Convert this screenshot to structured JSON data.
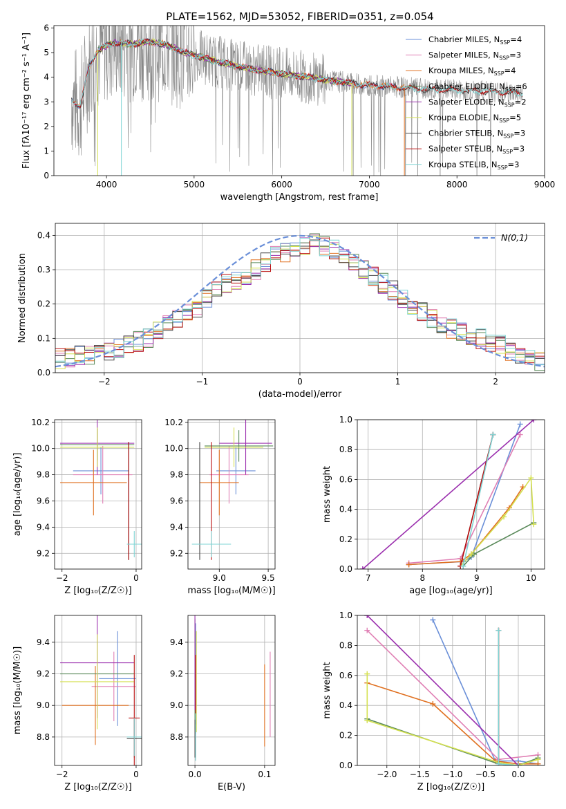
{
  "figure": {
    "title": "PLATE=1562, MJD=53052, FIBERID=0351, z=0.054"
  },
  "colors": {
    "Chabrier MILES": "#6a8fd8",
    "Salpeter MILES": "#e07fb4",
    "Kroupa MILES": "#e07020",
    "Chabrier ELODIE": "#5a8a5a",
    "Salpeter ELODIE": "#9b2fae",
    "Kroupa ELODIE": "#d4e050",
    "Chabrier STELIB": "#444444",
    "Salpeter STELIB": "#bb1111",
    "Kroupa STELIB": "#7fd4d4",
    "observed": "#888888",
    "normal": "#6a8fd8"
  },
  "chart_data": [
    {
      "type": "line",
      "id": "spectrum",
      "xlabel": "wavelength [Angstrom, rest frame]",
      "ylabel": "Flux [fλ10⁻¹⁷ erg cm⁻² s⁻¹ A⁻¹]",
      "xlim": [
        3400,
        9000
      ],
      "ylim": [
        0,
        6.1
      ],
      "xticks": [
        4000,
        5000,
        6000,
        7000,
        8000,
        9000
      ],
      "yticks": [
        0,
        1,
        2,
        3,
        4,
        5,
        6
      ],
      "legend_position": "right",
      "observed_range": [
        3600,
        8750
      ],
      "series": [
        {
          "name": "Chabrier MILES, N_SSP=4",
          "label": "Chabrier MILES, N",
          "sub": "SSP",
          "suffix": "=4",
          "x_range": [
            3600,
            7400
          ]
        },
        {
          "name": "Salpeter MILES, N_SSP=3",
          "label": "Salpeter MILES, N",
          "sub": "SSP",
          "suffix": "=3",
          "x_range": [
            3600,
            7400
          ]
        },
        {
          "name": "Kroupa MILES, N_SSP=4",
          "label": "Kroupa MILES, N",
          "sub": "SSP",
          "suffix": "=4",
          "x_range": [
            3600,
            7400
          ]
        },
        {
          "name": "Chabrier ELODIE, N_SSP=6",
          "label": "Chabrier ELODIE, N",
          "sub": "SSP",
          "suffix": "=6",
          "x_range": [
            3900,
            6800
          ]
        },
        {
          "name": "Salpeter ELODIE, N_SSP=2",
          "label": "Salpeter ELODIE, N",
          "sub": "SSP",
          "suffix": "=2",
          "x_range": [
            3900,
            6800
          ]
        },
        {
          "name": "Kroupa ELODIE, N_SSP=5",
          "label": "Kroupa ELODIE, N",
          "sub": "SSP",
          "suffix": "=5",
          "x_range": [
            3900,
            6800
          ]
        },
        {
          "name": "Chabrier STELIB, N_SSP=3",
          "label": "Chabrier STELIB, N",
          "sub": "SSP",
          "suffix": "=3",
          "x_range": [
            3600,
            8750
          ]
        },
        {
          "name": "Salpeter STELIB, N_SSP=3",
          "label": "Salpeter STELIB, N",
          "sub": "SSP",
          "suffix": "=3",
          "x_range": [
            3600,
            8750
          ]
        },
        {
          "name": "Kroupa STELIB, N_SSP=3",
          "label": "Kroupa STELIB, N",
          "sub": "SSP",
          "suffix": "=3",
          "x_range": [
            3600,
            8750
          ]
        }
      ],
      "continuum_points": [
        [
          3600,
          3.1
        ],
        [
          3700,
          2.8
        ],
        [
          3800,
          4.4
        ],
        [
          3900,
          5.1
        ],
        [
          4000,
          5.3
        ],
        [
          4100,
          5.4
        ],
        [
          4300,
          5.35
        ],
        [
          4500,
          5.45
        ],
        [
          4700,
          5.3
        ],
        [
          4900,
          5.0
        ],
        [
          5100,
          4.8
        ],
        [
          5300,
          4.6
        ],
        [
          5500,
          4.45
        ],
        [
          5700,
          4.3
        ],
        [
          5900,
          4.2
        ],
        [
          6100,
          4.1
        ],
        [
          6300,
          4.0
        ],
        [
          6500,
          3.9
        ],
        [
          6700,
          3.8
        ],
        [
          6900,
          3.7
        ],
        [
          7100,
          3.65
        ],
        [
          7300,
          3.6
        ],
        [
          7500,
          3.55
        ],
        [
          7700,
          3.5
        ],
        [
          7900,
          3.5
        ],
        [
          8100,
          3.45
        ],
        [
          8300,
          3.45
        ],
        [
          8500,
          3.4
        ],
        [
          8750,
          3.35
        ]
      ]
    },
    {
      "type": "histogram",
      "id": "residuals",
      "xlabel": "(data-model)/error",
      "ylabel": "Normed distribution",
      "xlim": [
        -2.5,
        2.5
      ],
      "ylim": [
        0,
        0.435
      ],
      "xticks": [
        -2,
        -1,
        0,
        1,
        2
      ],
      "yticks": [
        0.0,
        0.1,
        0.2,
        0.3,
        0.4
      ],
      "bin_width": 0.1,
      "bin_start": -2.5,
      "grid": true,
      "legend": "N(0,1)",
      "legend_position": "top-right",
      "reference_curve": "normal(0,1)",
      "base_values": [
        0.04,
        0.045,
        0.05,
        0.05,
        0.055,
        0.06,
        0.07,
        0.08,
        0.09,
        0.1,
        0.12,
        0.14,
        0.155,
        0.17,
        0.19,
        0.22,
        0.24,
        0.26,
        0.27,
        0.28,
        0.3,
        0.32,
        0.34,
        0.35,
        0.36,
        0.37,
        0.38,
        0.37,
        0.36,
        0.34,
        0.32,
        0.3,
        0.28,
        0.26,
        0.24,
        0.22,
        0.2,
        0.18,
        0.16,
        0.14,
        0.13,
        0.12,
        0.11,
        0.1,
        0.09,
        0.08,
        0.065,
        0.055,
        0.04,
        0.035
      ]
    },
    {
      "type": "errorbar",
      "id": "age-vs-Z",
      "xlabel": "Z [log₁₀(Z/Z☉)]",
      "ylabel": "age  [log₁₀(age/yr)]",
      "xlim": [
        -2.2,
        0.15
      ],
      "ylim": [
        9.08,
        10.22
      ],
      "xticks": [
        -2,
        0
      ],
      "yticks": [
        9.2,
        9.4,
        9.6,
        9.8,
        10.0,
        10.2
      ],
      "grid": true,
      "points": [
        {
          "series": "Chabrier MILES",
          "x": -0.95,
          "y": 9.83,
          "xerr": 0.75,
          "yerr": 0.18
        },
        {
          "series": "Salpeter MILES",
          "x": -0.9,
          "y": 9.8,
          "xerr": 0.8,
          "yerr": 0.22
        },
        {
          "series": "Kroupa MILES",
          "x": -1.15,
          "y": 9.74,
          "xerr": 0.9,
          "yerr": 0.25
        },
        {
          "series": "Chabrier ELODIE",
          "x": -1.05,
          "y": 10.03,
          "xerr": 1.0,
          "yerr": 0.12
        },
        {
          "series": "Salpeter ELODIE",
          "x": -1.05,
          "y": 10.04,
          "xerr": 1.0,
          "yerr": 0.24
        },
        {
          "series": "Kroupa ELODIE",
          "x": -1.05,
          "y": 10.01,
          "xerr": 1.0,
          "yerr": 0.15
        },
        {
          "series": "Chabrier STELIB",
          "x": -0.2,
          "y": 9.6,
          "xerr": 0.0,
          "yerr": 0.45
        },
        {
          "series": "Salpeter STELIB",
          "x": -0.2,
          "y": 9.6,
          "xerr": 0.0,
          "yerr": 0.45
        },
        {
          "series": "Kroupa STELIB",
          "x": -0.05,
          "y": 9.27,
          "xerr": 0.2,
          "yerr": 0.1
        }
      ]
    },
    {
      "type": "errorbar",
      "id": "age-vs-mass",
      "xlabel": "mass [log₁₀(M/M☉)]",
      "ylabel": "",
      "xlim": [
        8.68,
        9.57
      ],
      "ylim": [
        9.08,
        10.22
      ],
      "xticks": [
        9.0,
        9.5
      ],
      "yticks": [
        9.2,
        9.4,
        9.6,
        9.8,
        10.0,
        10.2
      ],
      "grid": true,
      "points": [
        {
          "series": "Chabrier MILES",
          "x": 9.17,
          "y": 9.83,
          "xerr": 0.2,
          "yerr": 0.18
        },
        {
          "series": "Salpeter MILES",
          "x": 9.1,
          "y": 9.8,
          "xerr": 0.2,
          "yerr": 0.22
        },
        {
          "series": "Kroupa MILES",
          "x": 9.0,
          "y": 9.74,
          "xerr": 0.2,
          "yerr": 0.25
        },
        {
          "series": "Chabrier ELODIE",
          "x": 9.2,
          "y": 10.02,
          "xerr": 0.35,
          "yerr": 0.12
        },
        {
          "series": "Salpeter ELODIE",
          "x": 9.27,
          "y": 10.04,
          "xerr": 0.27,
          "yerr": 0.24
        },
        {
          "series": "Kroupa ELODIE",
          "x": 9.15,
          "y": 10.01,
          "xerr": 0.3,
          "yerr": 0.15
        },
        {
          "series": "Chabrier STELIB",
          "x": 8.8,
          "y": 9.6,
          "xerr": 0.0,
          "yerr": 0.45
        },
        {
          "series": "Salpeter STELIB",
          "x": 8.92,
          "y": 9.6,
          "xerr": 0.0,
          "yerr": 0.45
        },
        {
          "series": "Kroupa STELIB",
          "x": 8.92,
          "y": 9.27,
          "xerr": 0.2,
          "yerr": 0.1
        }
      ]
    },
    {
      "type": "line",
      "id": "massweight-vs-age",
      "xlabel": "age  [log₁₀(age/yr)]",
      "ylabel": "mass weight",
      "xlim": [
        6.8,
        10.25
      ],
      "ylim": [
        0,
        1
      ],
      "xticks": [
        7,
        8,
        9,
        10
      ],
      "yticks": [
        0.0,
        0.2,
        0.4,
        0.6,
        0.8,
        1.0
      ],
      "grid": true,
      "series": [
        {
          "name": "Chabrier MILES",
          "x": [
            7.75,
            8.75,
            8.9,
            9.8
          ],
          "y": [
            0.03,
            0.05,
            0.08,
            0.97
          ]
        },
        {
          "name": "Salpeter MILES",
          "x": [
            7.75,
            8.7,
            9.8
          ],
          "y": [
            0.04,
            0.07,
            0.9
          ]
        },
        {
          "name": "Kroupa MILES",
          "x": [
            7.75,
            8.7,
            8.9,
            9.6,
            9.85
          ],
          "y": [
            0.03,
            0.05,
            0.1,
            0.41,
            0.55
          ]
        },
        {
          "name": "Chabrier ELODIE",
          "x": [
            8.75,
            8.95,
            10.05
          ],
          "y": [
            0.02,
            0.1,
            0.31
          ]
        },
        {
          "name": "Salpeter ELODIE",
          "x": [
            6.9,
            10.05
          ],
          "y": [
            0.0,
            1.0
          ]
        },
        {
          "name": "Kroupa ELODIE",
          "x": [
            8.7,
            8.9,
            9.5,
            10.0,
            10.05
          ],
          "y": [
            0.02,
            0.1,
            0.35,
            0.61,
            0.3
          ]
        },
        {
          "name": "Chabrier STELIB",
          "x": [
            8.7,
            9.3
          ],
          "y": [
            0.02,
            0.9
          ]
        },
        {
          "name": "Salpeter STELIB",
          "x": [
            8.7,
            9.3
          ],
          "y": [
            0.02,
            0.9
          ]
        },
        {
          "name": "Kroupa STELIB",
          "x": [
            8.75,
            9.3
          ],
          "y": [
            0.02,
            0.9
          ]
        }
      ]
    },
    {
      "type": "errorbar",
      "id": "mass-vs-Z",
      "xlabel": "Z [log₁₀(Z/Z☉)]",
      "ylabel": "mass [log₁₀(M/M☉)]",
      "xlim": [
        -2.2,
        0.15
      ],
      "ylim": [
        8.62,
        9.57
      ],
      "xticks": [
        -2,
        0
      ],
      "yticks": [
        8.8,
        9.0,
        9.2,
        9.4
      ],
      "grid": true,
      "points": [
        {
          "series": "Chabrier MILES",
          "x": -0.5,
          "y": 9.17,
          "xerr": 0.5,
          "yerr": 0.3
        },
        {
          "series": "Salpeter MILES",
          "x": -0.6,
          "y": 9.12,
          "xerr": 0.6,
          "yerr": 0.22
        },
        {
          "series": "Kroupa MILES",
          "x": -1.1,
          "y": 9.0,
          "xerr": 0.9,
          "yerr": 0.25
        },
        {
          "series": "Chabrier ELODIE",
          "x": -1.05,
          "y": 9.2,
          "xerr": 1.0,
          "yerr": 0.0
        },
        {
          "series": "Salpeter ELODIE",
          "x": -1.05,
          "y": 9.27,
          "xerr": 1.0,
          "yerr": 0.35
        },
        {
          "series": "Kroupa ELODIE",
          "x": -1.05,
          "y": 9.15,
          "xerr": 1.0,
          "yerr": 0.3
        },
        {
          "series": "Chabrier STELIB",
          "x": -0.05,
          "y": 8.79,
          "xerr": 0.2,
          "yerr": 0.12
        },
        {
          "series": "Salpeter STELIB",
          "x": -0.05,
          "y": 8.92,
          "xerr": 0.15,
          "yerr": 0.4
        },
        {
          "series": "Kroupa STELIB",
          "x": -0.05,
          "y": 8.8,
          "xerr": 0.2,
          "yerr": 0.12
        }
      ]
    },
    {
      "type": "errorbar",
      "id": "mass-vs-EBV",
      "xlabel": "E(B-V)",
      "ylabel": "",
      "xlim": [
        -0.01,
        0.115
      ],
      "ylim": [
        8.62,
        9.57
      ],
      "xticks": [
        0.0,
        0.1
      ],
      "yticks": [
        8.8,
        9.0,
        9.2,
        9.4
      ],
      "grid": true,
      "points": [
        {
          "series": "Chabrier MILES",
          "x": 0.001,
          "y": 9.17,
          "xerr": 0.0,
          "yerr": 0.35
        },
        {
          "series": "Salpeter MILES",
          "x": 0.108,
          "y": 9.07,
          "xerr": 0.0,
          "yerr": 0.27
        },
        {
          "series": "Kroupa MILES",
          "x": 0.1,
          "y": 9.0,
          "xerr": 0.0,
          "yerr": 0.26
        },
        {
          "series": "Chabrier ELODIE",
          "x": 0.0,
          "y": 9.2,
          "xerr": 0.0,
          "yerr": 0.35
        },
        {
          "series": "Salpeter ELODIE",
          "x": 0.0,
          "y": 9.27,
          "xerr": 0.0,
          "yerr": 0.3
        },
        {
          "series": "Kroupa ELODIE",
          "x": 0.002,
          "y": 9.15,
          "xerr": 0.0,
          "yerr": 0.32
        },
        {
          "series": "Chabrier STELIB",
          "x": 0.0,
          "y": 8.79,
          "xerr": 0.0,
          "yerr": 0.12
        },
        {
          "series": "Salpeter STELIB",
          "x": 0.001,
          "y": 9.1,
          "xerr": 0.0,
          "yerr": 0.22
        },
        {
          "series": "Kroupa STELIB",
          "x": 0.001,
          "y": 8.8,
          "xerr": 0.0,
          "yerr": 0.15
        }
      ]
    },
    {
      "type": "line",
      "id": "massweight-vs-Z",
      "xlabel": "Z [log₁₀(Z/Z☉)]",
      "ylabel": "mass weight",
      "xlim": [
        -2.45,
        0.4
      ],
      "ylim": [
        0,
        1
      ],
      "xticks": [
        -2.0,
        -1.5,
        -1.0,
        -0.5,
        0.0
      ],
      "yticks": [
        0.0,
        0.2,
        0.4,
        0.6,
        0.8,
        1.0
      ],
      "grid": true,
      "series": [
        {
          "name": "Chabrier MILES",
          "x": [
            -1.3,
            -0.35,
            0.0,
            0.3
          ],
          "y": [
            0.97,
            0.03,
            0.03,
            0.01
          ]
        },
        {
          "name": "Salpeter MILES",
          "x": [
            -2.3,
            -0.3,
            0.3
          ],
          "y": [
            0.9,
            0.04,
            0.07
          ]
        },
        {
          "name": "Kroupa MILES",
          "x": [
            -2.3,
            -1.3,
            -0.35,
            0.0,
            0.3
          ],
          "y": [
            0.55,
            0.41,
            0.03,
            0.01,
            0.01
          ]
        },
        {
          "name": "Chabrier ELODIE",
          "x": [
            -2.3,
            -0.3,
            0.0,
            0.3
          ],
          "y": [
            0.31,
            0.01,
            0.0,
            0.05
          ]
        },
        {
          "name": "Salpeter ELODIE",
          "x": [
            -2.3,
            0.0
          ],
          "y": [
            1.0,
            0.0
          ]
        },
        {
          "name": "Kroupa ELODIE",
          "x": [
            -2.3,
            -2.3,
            -0.3,
            0.0,
            0.3
          ],
          "y": [
            0.61,
            0.3,
            0.02,
            0.0,
            0.04
          ]
        },
        {
          "name": "Chabrier STELIB",
          "x": [
            -0.3,
            -0.3
          ],
          "y": [
            0.9,
            0.01
          ]
        },
        {
          "name": "Salpeter STELIB",
          "x": [
            -0.3,
            -0.3
          ],
          "y": [
            0.9,
            0.01
          ]
        },
        {
          "name": "Kroupa STELIB",
          "x": [
            -0.3,
            -0.3,
            0.0
          ],
          "y": [
            0.9,
            0.01,
            0.0
          ]
        }
      ]
    }
  ]
}
